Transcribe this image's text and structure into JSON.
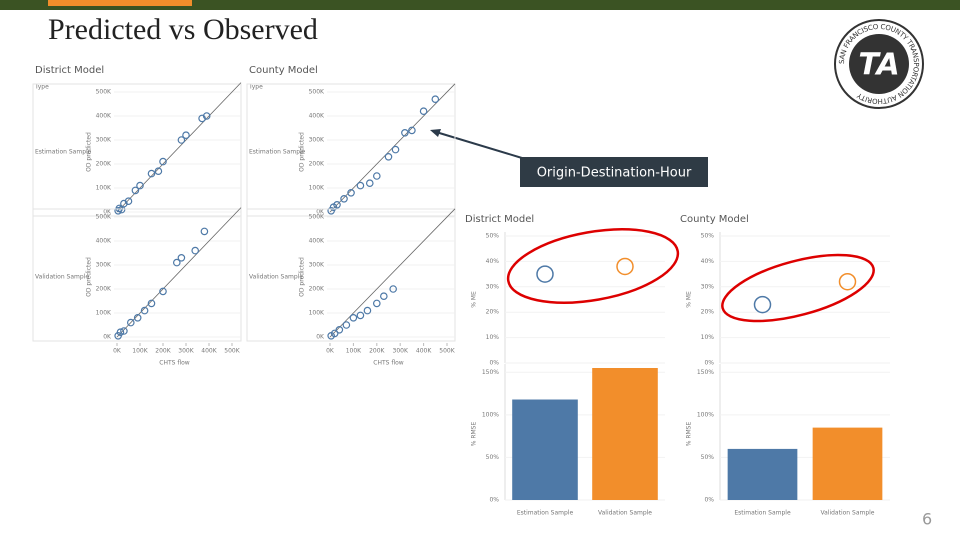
{
  "slide": {
    "title": "Predicted vs Observed",
    "page_number": "6",
    "callout": "Origin-Destination-Hour",
    "logo": {
      "ring_text": "SAN FRANCISCO COUNTY TRANSPORTATION AUTHORITY",
      "mark": "TA"
    }
  },
  "chart_data": [
    {
      "type": "scatter",
      "title": "District Model",
      "legend_title": "Type",
      "y_label": "OD predicted",
      "x_label": "CHTS flow",
      "color": "#4e79a7",
      "xlim": [
        0,
        500000
      ],
      "ylim": [
        0,
        500000
      ],
      "xticks": [
        {
          "value": 0,
          "label": "0K"
        },
        {
          "value": 100000,
          "label": "100K"
        },
        {
          "value": 200000,
          "label": "200K"
        },
        {
          "value": 300000,
          "label": "300K"
        },
        {
          "value": 400000,
          "label": "400K"
        },
        {
          "value": 500000,
          "label": "500K"
        }
      ],
      "yticks": [
        {
          "value": 0,
          "label": "0K"
        },
        {
          "value": 100000,
          "label": "100K"
        },
        {
          "value": 200000,
          "label": "200K"
        },
        {
          "value": 300000,
          "label": "300K"
        },
        {
          "value": 400000,
          "label": "400K"
        },
        {
          "value": 500000,
          "label": "500K"
        }
      ],
      "series": [
        {
          "name": "Estimation Sample",
          "x": [
            5000,
            10000,
            20000,
            30000,
            50000,
            80000,
            100000,
            150000,
            180000,
            200000,
            280000,
            300000,
            370000,
            390000
          ],
          "y": [
            5000,
            15000,
            10000,
            35000,
            45000,
            90000,
            110000,
            160000,
            170000,
            210000,
            300000,
            320000,
            390000,
            400000
          ]
        },
        {
          "name": "Validation Sample",
          "x": [
            5000,
            15000,
            30000,
            60000,
            90000,
            120000,
            150000,
            200000,
            260000,
            280000,
            340000,
            380000
          ],
          "y": [
            5000,
            20000,
            25000,
            60000,
            80000,
            110000,
            140000,
            190000,
            310000,
            330000,
            360000,
            440000
          ]
        }
      ]
    },
    {
      "type": "scatter",
      "title": "County Model",
      "legend_title": "Type",
      "y_label": "OD predicted",
      "x_label": "CHTS flow",
      "color": "#4e79a7",
      "xlim": [
        0,
        500000
      ],
      "ylim": [
        0,
        500000
      ],
      "xticks": [
        {
          "value": 0,
          "label": "0K"
        },
        {
          "value": 100000,
          "label": "100K"
        },
        {
          "value": 200000,
          "label": "200K"
        },
        {
          "value": 300000,
          "label": "300K"
        },
        {
          "value": 400000,
          "label": "400K"
        },
        {
          "value": 500000,
          "label": "500K"
        }
      ],
      "yticks": [
        {
          "value": 0,
          "label": "0K"
        },
        {
          "value": 100000,
          "label": "100K"
        },
        {
          "value": 200000,
          "label": "200K"
        },
        {
          "value": 300000,
          "label": "300K"
        },
        {
          "value": 400000,
          "label": "400K"
        },
        {
          "value": 500000,
          "label": "500K"
        }
      ],
      "series": [
        {
          "name": "Estimation Sample",
          "x": [
            5000,
            15000,
            30000,
            60000,
            90000,
            130000,
            170000,
            200000,
            250000,
            280000,
            320000,
            350000,
            400000,
            450000
          ],
          "y": [
            5000,
            20000,
            30000,
            55000,
            80000,
            110000,
            120000,
            150000,
            230000,
            260000,
            330000,
            340000,
            420000,
            470000
          ]
        },
        {
          "name": "Validation Sample",
          "x": [
            5000,
            20000,
            40000,
            70000,
            100000,
            130000,
            160000,
            200000,
            230000,
            270000
          ],
          "y": [
            5000,
            15000,
            30000,
            50000,
            80000,
            90000,
            110000,
            140000,
            170000,
            200000
          ]
        }
      ]
    },
    {
      "type": "dot",
      "title": "District Model",
      "y_label": "% ME",
      "categories": [
        null,
        null
      ],
      "colors": [
        "#4e79a7",
        "#f28e2b"
      ],
      "values": [
        35,
        38
      ],
      "ylim": [
        0,
        50
      ],
      "yticks": [
        {
          "value": 0,
          "label": "0%"
        },
        {
          "value": 10,
          "label": "10%"
        },
        {
          "value": 20,
          "label": "20%"
        },
        {
          "value": 30,
          "label": "30%"
        },
        {
          "value": 40,
          "label": "40%"
        },
        {
          "value": 50,
          "label": "50%"
        }
      ]
    },
    {
      "type": "bar",
      "y_label": "% RMSE",
      "categories": [
        "Estimation Sample",
        "Validation Sample"
      ],
      "colors": [
        "#4e79a7",
        "#f28e2b"
      ],
      "values": [
        118,
        155
      ],
      "ylim": [
        0,
        155
      ],
      "yticks": [
        {
          "value": 0,
          "label": "0%"
        },
        {
          "value": 50,
          "label": "50%"
        },
        {
          "value": 100,
          "label": "100%"
        },
        {
          "value": 150,
          "label": "150%"
        }
      ]
    },
    {
      "type": "dot",
      "title": "County Model",
      "y_label": "% ME",
      "categories": [
        null,
        null
      ],
      "colors": [
        "#4e79a7",
        "#f28e2b"
      ],
      "values": [
        23,
        32
      ],
      "ylim": [
        0,
        50
      ],
      "yticks": [
        {
          "value": 0,
          "label": "0%"
        },
        {
          "value": 10,
          "label": "10%"
        },
        {
          "value": 20,
          "label": "20%"
        },
        {
          "value": 30,
          "label": "30%"
        },
        {
          "value": 40,
          "label": "40%"
        },
        {
          "value": 50,
          "label": "50%"
        }
      ]
    },
    {
      "type": "bar",
      "y_label": "% RMSE",
      "categories": [
        "Estimation Sample",
        "Validation Sample"
      ],
      "colors": [
        "#4e79a7",
        "#f28e2b"
      ],
      "values": [
        60,
        85
      ],
      "ylim": [
        0,
        155
      ],
      "yticks": [
        {
          "value": 0,
          "label": "0%"
        },
        {
          "value": 50,
          "label": "50%"
        },
        {
          "value": 100,
          "label": "100%"
        },
        {
          "value": 150,
          "label": "150%"
        }
      ]
    }
  ]
}
